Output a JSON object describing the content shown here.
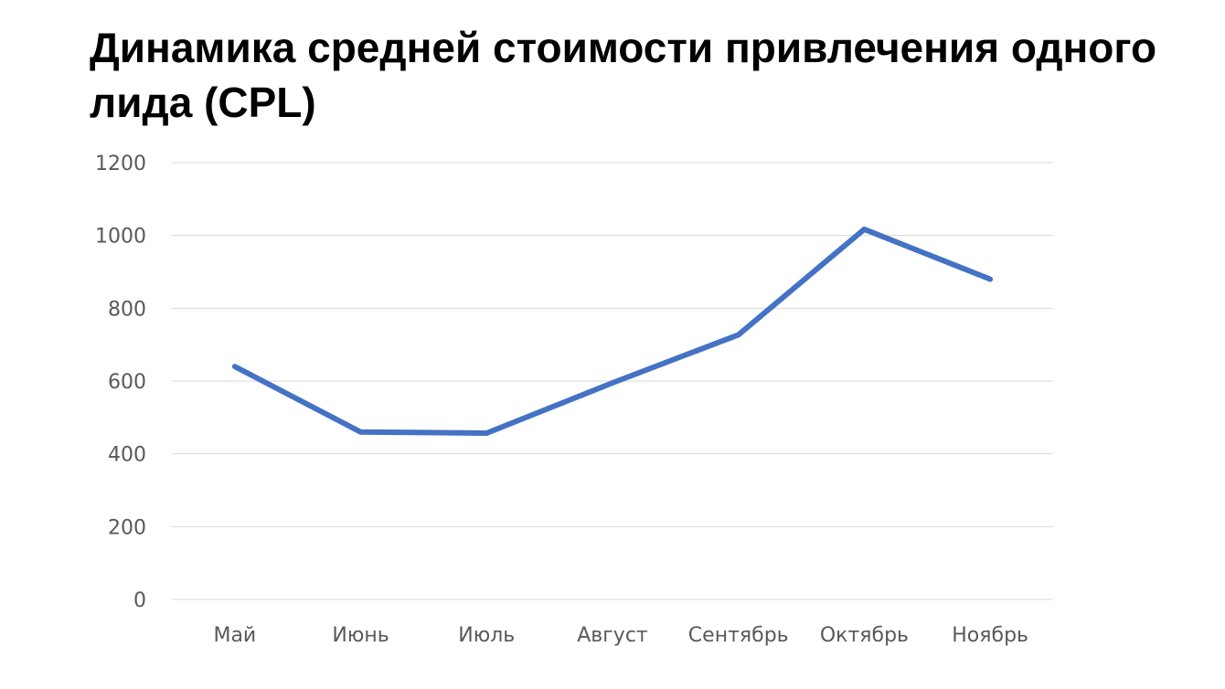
{
  "title": "Динамика средней стоимости привлечения одного лида (CPL)",
  "chart_data": {
    "type": "line",
    "title": "Динамика средней стоимости привлечения одного лида (CPL)",
    "categories": [
      "Май",
      "Июнь",
      "Июль",
      "Август",
      "Сентябрь",
      "Октябрь",
      "Ноябрь"
    ],
    "series": [
      {
        "values": [
          640,
          460,
          457,
          595,
          727,
          1017,
          880
        ],
        "color": "#4472C4"
      }
    ],
    "y_ticks": [
      "0",
      "200",
      "400",
      "600",
      "800",
      "1000",
      "1200"
    ],
    "ylim": [
      0,
      1200
    ],
    "xlabel": "",
    "ylabel": "",
    "grid": true,
    "legend": "none",
    "gridline_color": "#D9D9D9",
    "tick_label_color": "#595959"
  }
}
